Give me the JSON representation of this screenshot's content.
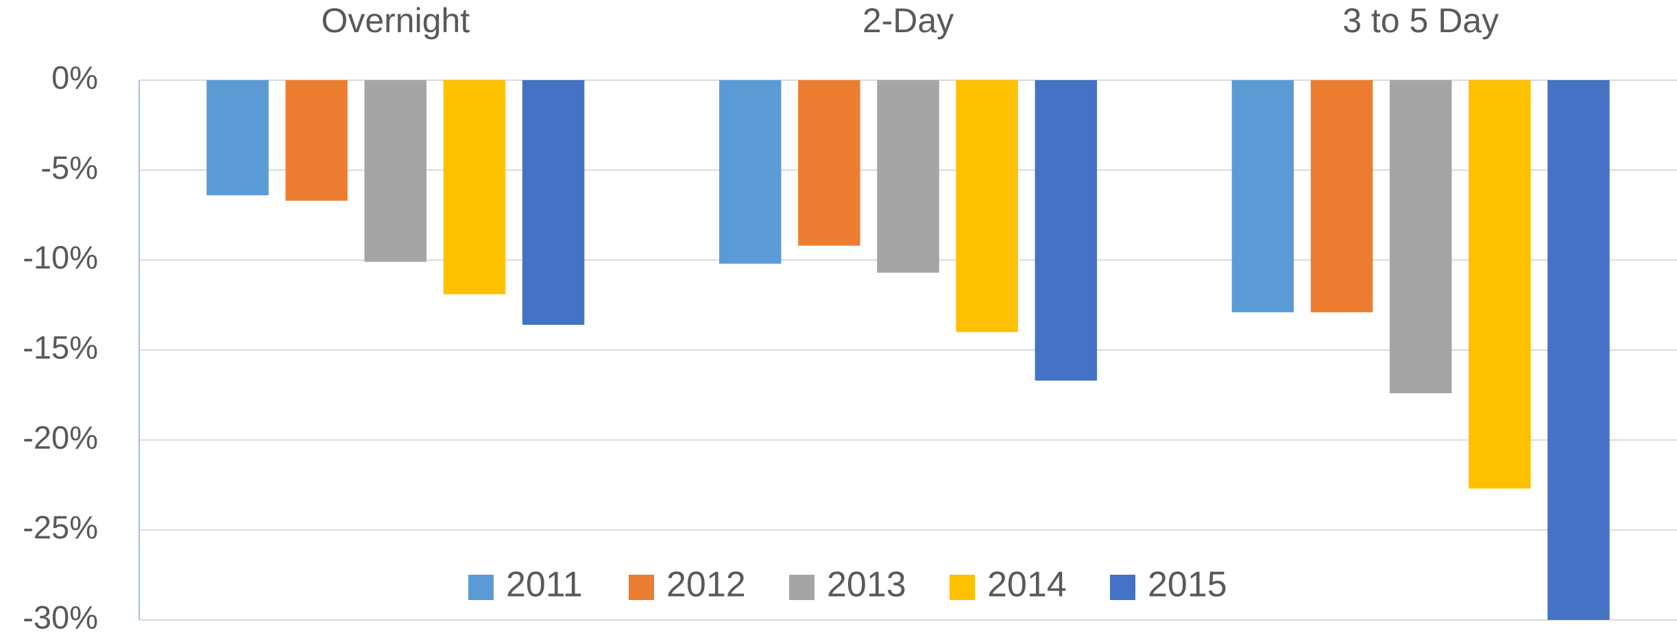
{
  "chart_data": {
    "type": "bar",
    "categories": [
      "Overnight",
      "2-Day",
      "3 to 5 Day"
    ],
    "series": [
      {
        "name": "2011",
        "color": "#5b9bd5",
        "values": [
          -6.4,
          -10.2,
          -12.9
        ]
      },
      {
        "name": "2012",
        "color": "#ed7d31",
        "values": [
          -6.7,
          -9.2,
          -12.9
        ]
      },
      {
        "name": "2013",
        "color": "#a5a5a5",
        "values": [
          -10.1,
          -10.7,
          -17.4
        ]
      },
      {
        "name": "2014",
        "color": "#ffc000",
        "values": [
          -11.9,
          -14.0,
          -22.7
        ]
      },
      {
        "name": "2015",
        "color": "#4472c4",
        "values": [
          -13.6,
          -16.7,
          -30.0
        ]
      }
    ],
    "ylim": [
      -30,
      0
    ],
    "yticks": [
      {
        "value": 0,
        "label": "0%"
      },
      {
        "value": -5,
        "label": "-5%"
      },
      {
        "value": -10,
        "label": "-10%"
      },
      {
        "value": -15,
        "label": "-15%"
      },
      {
        "value": -20,
        "label": "-20%"
      },
      {
        "value": -25,
        "label": "-25%"
      },
      {
        "value": -30,
        "label": "-30%"
      }
    ],
    "grid": true,
    "legend": "bottom"
  }
}
